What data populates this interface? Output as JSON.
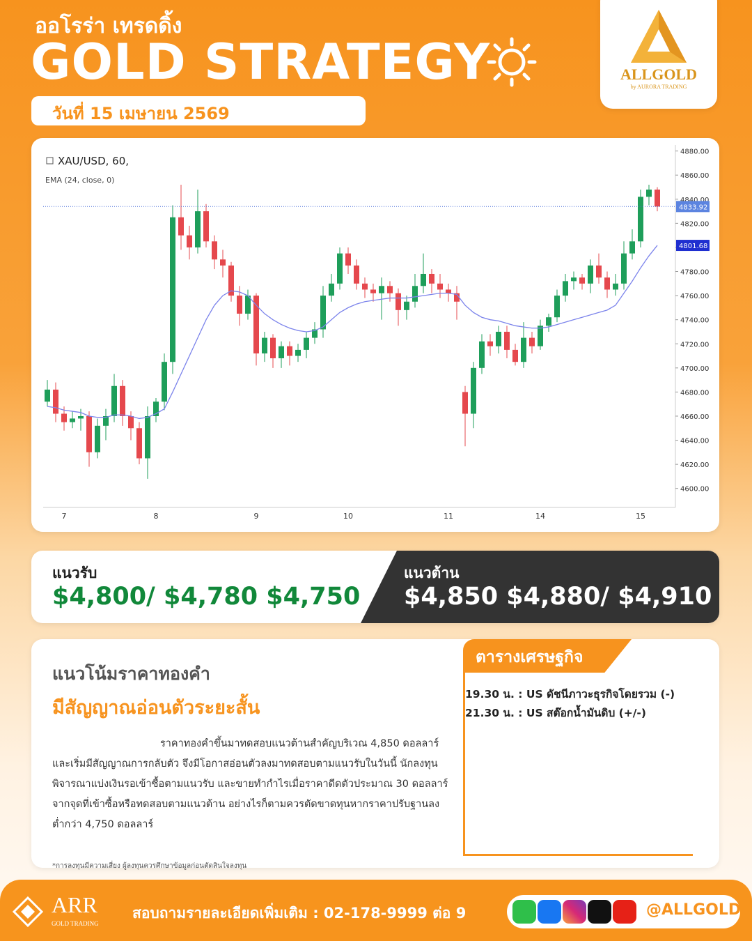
{
  "header": {
    "brand": "ออโรร่า เทรดดิ้ง",
    "title": "GOLD STRATEGY",
    "date": "วันที่ 15 เมษายน 2569",
    "logo": "ALLGOLD",
    "logo_sub": "by AURORA TRADING"
  },
  "chart_data": {
    "type": "candlestick",
    "symbol": "XAU/USD, 60,",
    "categories": [
      null,
      null,
      "7",
      null,
      null,
      null,
      null,
      null,
      null,
      null,
      null,
      null,
      null,
      "8",
      null,
      null,
      null,
      null,
      null,
      null,
      null,
      null,
      null,
      null,
      null,
      "9",
      null,
      null,
      null,
      null,
      null,
      null,
      null,
      null,
      null,
      null,
      "10",
      null,
      null,
      null,
      null,
      null,
      null,
      null,
      null,
      null,
      null,
      null,
      "11",
      null,
      null,
      null,
      null,
      null,
      null,
      null,
      null,
      null,
      null,
      "14",
      null,
      null,
      null,
      null,
      null,
      null,
      null,
      null,
      null,
      null,
      null,
      "15",
      null,
      null
    ],
    "open": [
      4672,
      4682,
      4662,
      4655,
      4658,
      4660,
      4630,
      4652,
      4660,
      4685,
      4660,
      4650,
      4625,
      4660,
      4672,
      4705,
      4825,
      4810,
      4800,
      4830,
      4805,
      4790,
      4785,
      4760,
      4745,
      4760,
      4712,
      4725,
      4708,
      4718,
      4710,
      4715,
      4725,
      4732,
      4760,
      4770,
      4795,
      4785,
      4770,
      4765,
      4762,
      4768,
      4762,
      4748,
      4755,
      4768,
      4778,
      4770,
      4765,
      4762,
      4680,
      4662,
      4700,
      4722,
      4718,
      4730,
      4715,
      4705,
      4725,
      4718,
      4735,
      4742,
      4760,
      4772,
      4775,
      4770,
      4785,
      4775,
      4765,
      4770,
      4795,
      4805,
      4842,
      4848
    ],
    "high": [
      4690,
      4688,
      4668,
      4664,
      4666,
      4664,
      4658,
      4666,
      4695,
      4690,
      4664,
      4655,
      4668,
      4675,
      4712,
      4835,
      4852,
      4818,
      4848,
      4836,
      4810,
      4798,
      4788,
      4768,
      4765,
      4762,
      4730,
      4728,
      4722,
      4722,
      4720,
      4730,
      4738,
      4768,
      4778,
      4800,
      4800,
      4790,
      4775,
      4770,
      4775,
      4772,
      4766,
      4760,
      4778,
      4795,
      4782,
      4778,
      4770,
      4768,
      4685,
      4705,
      4728,
      4728,
      4735,
      4735,
      4720,
      4738,
      4730,
      4740,
      4745,
      4765,
      4778,
      4780,
      4778,
      4790,
      4795,
      4780,
      4778,
      4805,
      4815,
      4848,
      4852,
      4850
    ],
    "low": [
      4668,
      4655,
      4648,
      4650,
      4648,
      4618,
      4625,
      4640,
      4655,
      4652,
      4640,
      4620,
      4608,
      4655,
      4665,
      4695,
      4798,
      4790,
      4795,
      4800,
      4782,
      4775,
      4755,
      4735,
      4740,
      4702,
      4705,
      4700,
      4700,
      4702,
      4705,
      4708,
      4720,
      4725,
      4755,
      4765,
      4778,
      4765,
      4758,
      4755,
      4740,
      4755,
      4735,
      4740,
      4750,
      4762,
      4762,
      4758,
      4755,
      4740,
      4635,
      4650,
      4695,
      4710,
      4712,
      4708,
      4702,
      4700,
      4712,
      4715,
      4730,
      4738,
      4755,
      4765,
      4765,
      4762,
      4770,
      4758,
      4760,
      4765,
      4790,
      4800,
      4835,
      4830
    ],
    "close": [
      4682,
      4662,
      4655,
      4658,
      4660,
      4630,
      4652,
      4660,
      4685,
      4660,
      4650,
      4625,
      4660,
      4672,
      4705,
      4825,
      4810,
      4800,
      4830,
      4805,
      4790,
      4785,
      4760,
      4745,
      4760,
      4712,
      4725,
      4708,
      4718,
      4710,
      4715,
      4725,
      4732,
      4760,
      4770,
      4795,
      4785,
      4770,
      4765,
      4762,
      4768,
      4762,
      4748,
      4755,
      4768,
      4778,
      4770,
      4765,
      4762,
      4755,
      4662,
      4700,
      4722,
      4718,
      4730,
      4715,
      4705,
      4725,
      4718,
      4735,
      4742,
      4760,
      4772,
      4775,
      4770,
      4785,
      4775,
      4765,
      4770,
      4795,
      4805,
      4842,
      4848,
      4833.92
    ],
    "ema": {
      "name": "EMA (24, close, 0)",
      "color": "#7b83eb",
      "values": [
        4668,
        4667,
        4665,
        4664,
        4663,
        4660,
        4659,
        4659,
        4661,
        4661,
        4660,
        4658,
        4659,
        4662,
        4666,
        4680,
        4695,
        4710,
        4725,
        4740,
        4752,
        4760,
        4764,
        4763,
        4760,
        4752,
        4745,
        4740,
        4736,
        4733,
        4731,
        4730,
        4731,
        4734,
        4740,
        4746,
        4750,
        4753,
        4755,
        4756,
        4757,
        4758,
        4758,
        4758,
        4759,
        4760,
        4761,
        4762,
        4762,
        4761,
        4752,
        4746,
        4742,
        4740,
        4739,
        4737,
        4735,
        4734,
        4733,
        4733,
        4734,
        4736,
        4738,
        4740,
        4742,
        4744,
        4746,
        4748,
        4752,
        4762,
        4772,
        4783,
        4793,
        4801.68
      ]
    },
    "up_color": "#1e9e5a",
    "down_color": "#e5484d",
    "price_label": 4833.92,
    "ema_label": 4801.68,
    "ylim": [
      4590,
      4885
    ],
    "yticks": [
      {
        "value": 4600,
        "label": "4600.00"
      },
      {
        "value": 4620,
        "label": "4620.00"
      },
      {
        "value": 4640,
        "label": "4640.00"
      },
      {
        "value": 4660,
        "label": "4660.00"
      },
      {
        "value": 4680,
        "label": "4680.00"
      },
      {
        "value": 4700,
        "label": "4700.00"
      },
      {
        "value": 4720,
        "label": "4720.00"
      },
      {
        "value": 4740,
        "label": "4740.00"
      },
      {
        "value": 4760,
        "label": "4760.00"
      },
      {
        "value": 4780,
        "label": "4780.00"
      },
      {
        "value": 4800,
        "label": "4800.00"
      },
      {
        "value": 4820,
        "label": "4820.00"
      },
      {
        "value": 4840,
        "label": "4840.00"
      },
      {
        "value": 4860,
        "label": "4860.00"
      },
      {
        "value": 4880,
        "label": "4880.00"
      }
    ]
  },
  "levels": {
    "support_label": "แนวรับ",
    "support": "$4,800/ $4,780 $4,750",
    "resistance_label": "แนวต้าน",
    "resistance": "$4,850 $4,880/ $4,910"
  },
  "analysis": {
    "heading": "แนวโน้มราคาทองคำ",
    "signal": "มีสัญญาณอ่อนตัวระยะสั้น",
    "lines": [
      "ราคาทองคำขึ้นมาทดสอบแนวต้านสำคัญบริเวณ 4,850 ดอลลาร์",
      "และเริ่มมีสัญญาณการกลับตัว จึงมีโอกาสอ่อนตัวลงมาทดสอบตามแนวรับในวันนี้ นักลงทุน",
      "พิจารณาแบ่งเงินรอเข้าซื้อตามแนวรับ และขายทำกำไรเมื่อราคาดีดตัวประมาณ 30 ดอลลาร์",
      "จากจุดที่เข้าซื้อหรือทดสอบตามแนวต้าน อย่างไรก็ตามควรตัดขาดทุนหากราคาปรับฐานลง",
      "ต่ำกว่า 4,750 ดอลลาร์"
    ],
    "disclaimer": "*การลงทุนมีความเสี่ยง ผู้ลงทุนควรศึกษาข้อมูลก่อนตัดสินใจลงทุน"
  },
  "calendar": {
    "title": "ตารางเศรษฐกิจ",
    "events": [
      "19.30 น. : US  ดัชนีภาวะธุรกิจโดยรวม (-)",
      "21.30 น. : US  สต๊อกน้ำมันดิบ (+/-)"
    ]
  },
  "footer": {
    "logo": "ARR",
    "logo_sub": "GOLD TRADING",
    "contact": "สอบถามรายละเอียดเพิ่มเติม : 02-178-9999 ต่อ 9",
    "handle": "@ALLGOLD"
  }
}
